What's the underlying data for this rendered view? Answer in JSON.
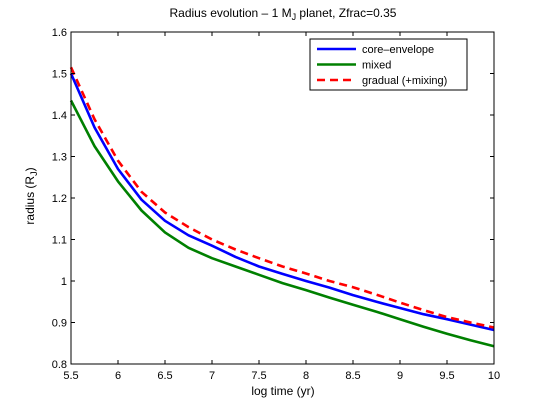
{
  "chart_data": {
    "type": "line",
    "title_prefix": "Radius evolution – 1 M",
    "title_sub": "J",
    "title_suffix": " planet, Zfrac=0.35",
    "xlabel": "log time (yr)",
    "ylabel_prefix": "radius (R",
    "ylabel_sub": "J",
    "ylabel_suffix": ")",
    "xlim": [
      5.5,
      10
    ],
    "ylim": [
      0.8,
      1.6
    ],
    "xticks": [
      5.5,
      6,
      6.5,
      7,
      7.5,
      8,
      8.5,
      9,
      9.5,
      10
    ],
    "xtick_labels": [
      "5.5",
      "6",
      "6.5",
      "7",
      "7.5",
      "8",
      "8.5",
      "9",
      "9.5",
      "10"
    ],
    "yticks": [
      0.8,
      0.9,
      1.0,
      1.1,
      1.2,
      1.3,
      1.4,
      1.5,
      1.6
    ],
    "ytick_labels": [
      "0.8",
      "0.9",
      "1",
      "1.1",
      "1.2",
      "1.3",
      "1.4",
      "1.5",
      "1.6"
    ],
    "grid": false,
    "legend_position": "top-right",
    "x": [
      5.5,
      5.75,
      6.0,
      6.25,
      6.5,
      6.75,
      7.0,
      7.25,
      7.5,
      7.75,
      8.0,
      8.25,
      8.5,
      8.75,
      9.0,
      9.25,
      9.5,
      9.75,
      10.0
    ],
    "series": [
      {
        "name": "core–envelope",
        "color": "#0000ff",
        "style": "solid",
        "values": [
          1.5,
          1.37,
          1.27,
          1.196,
          1.145,
          1.11,
          1.085,
          1.058,
          1.035,
          1.017,
          1.0,
          0.984,
          0.966,
          0.95,
          0.935,
          0.92,
          0.908,
          0.895,
          0.882
        ]
      },
      {
        "name": "mixed",
        "color": "#008000",
        "style": "solid",
        "values": [
          1.435,
          1.325,
          1.24,
          1.17,
          1.117,
          1.08,
          1.055,
          1.035,
          1.015,
          0.995,
          0.978,
          0.96,
          0.943,
          0.926,
          0.908,
          0.89,
          0.873,
          0.857,
          0.843
        ]
      },
      {
        "name": "gradual (+mixing)",
        "color": "#ff0000",
        "style": "dashed",
        "values": [
          1.515,
          1.39,
          1.29,
          1.215,
          1.165,
          1.13,
          1.1,
          1.076,
          1.055,
          1.035,
          1.018,
          1.0,
          0.985,
          0.967,
          0.948,
          0.93,
          0.913,
          0.9,
          0.888
        ]
      }
    ]
  }
}
